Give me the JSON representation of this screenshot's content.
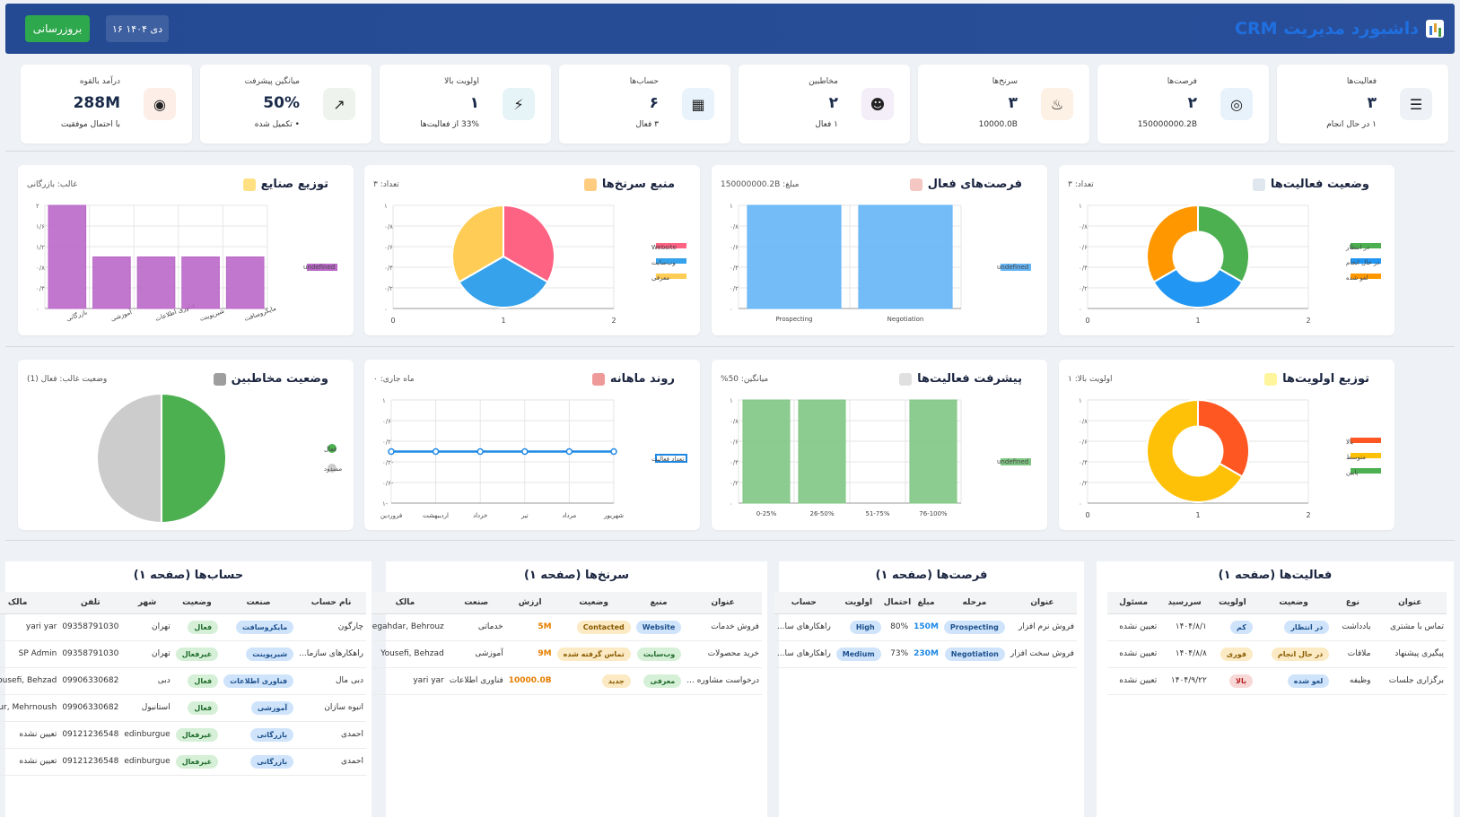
{
  "header": {
    "title": "داشبورد مدیریت CRM",
    "refresh_label": "بروزرسانی",
    "date": "۱۶ دی ۱۴۰۴"
  },
  "kpis": [
    {
      "label": "فعالیت‌ها",
      "value": "۳",
      "sub": "۱ در حال انجام",
      "icon": "clipboard-icon",
      "bg": "#eef2f6"
    },
    {
      "label": "فرصت‌ها",
      "value": "۲",
      "sub": "150000000.2B",
      "icon": "target-icon",
      "bg": "#e8f2fb"
    },
    {
      "label": "سرنخ‌ها",
      "value": "۳",
      "sub": "10000.0B",
      "icon": "fire-icon",
      "bg": "#fdf0e4"
    },
    {
      "label": "مخاطبین",
      "value": "۲",
      "sub": "۱ فعال",
      "icon": "people-icon",
      "bg": "#f3eef8"
    },
    {
      "label": "حساب‌ها",
      "value": "۶",
      "sub": "۳ فعال",
      "icon": "building-icon",
      "bg": "#e9f3fb"
    },
    {
      "label": "اولویت بالا",
      "value": "۱",
      "sub": "33% از فعالیت‌ها",
      "icon": "lightning-icon",
      "bg": "#e6f4f7"
    },
    {
      "label": "میانگین پیشرفت",
      "value": "50%",
      "sub": "• تکمیل شده",
      "icon": "trend-chart-icon",
      "bg": "#eef3ee"
    },
    {
      "label": "درآمد بالقوه",
      "value": "288M",
      "sub": "با احتمال موفقیت",
      "icon": "money-bag-icon",
      "bg": "#fdeee8"
    }
  ],
  "cards": {
    "activity_status": {
      "title": "وضعیت فعالیت‌ها",
      "meta": "تعداد: ۳"
    },
    "opportunities": {
      "title": "فرصت‌های فعال",
      "meta": "مبلغ: 150000000.2B"
    },
    "leads_source": {
      "title": "منبع سرنخ‌ها",
      "meta": "تعداد: ۳"
    },
    "industries": {
      "title": "توزیع صنایع",
      "meta": "غالب: بازرگانی"
    },
    "priority": {
      "title": "توزیع اولویت‌ها",
      "meta": "اولویت بالا: ۱"
    },
    "progress": {
      "title": "پیشرفت فعالیت‌ها",
      "meta": "میانگین: 50%"
    },
    "monthly": {
      "title": "روند ماهانه",
      "meta": "ماه جاری: ۰"
    },
    "contacts": {
      "title": "وضعیت مخاطبین",
      "meta": "وضعیت غالب: فعال (1)"
    }
  },
  "chart_data": [
    {
      "type": "pie",
      "id": "activity_status",
      "donut": true,
      "categories": [
        "در انتظار",
        "در حال انجام",
        "لغو شده"
      ],
      "values": [
        1,
        1,
        1
      ],
      "colors": [
        "#4caf50",
        "#2196f3",
        "#ff9800"
      ],
      "legend": "right",
      "x_ticks": [
        "0",
        "1",
        "2"
      ],
      "y_ticks": [
        "۰",
        "۰/۲",
        "۰/۴",
        "۰/۶",
        "۰/۸",
        "۱"
      ]
    },
    {
      "type": "bar",
      "id": "opportunities",
      "categories": [
        "Prospecting",
        "Negotiation"
      ],
      "values": [
        1,
        1
      ],
      "series_name": "undefined",
      "color": "#64b5f6",
      "y_ticks": [
        "۰",
        "۰/۲",
        "۰/۴",
        "۰/۶",
        "۰/۸",
        "۱"
      ],
      "ylim": [
        0,
        1
      ]
    },
    {
      "type": "pie",
      "id": "leads_source",
      "donut": false,
      "categories": [
        "Website",
        "وب‌سایت",
        "معرفی"
      ],
      "values": [
        1,
        1,
        1
      ],
      "colors": [
        "#ff6384",
        "#36a2eb",
        "#ffcd56"
      ],
      "legend": "right",
      "x_ticks": [
        "0",
        "1",
        "2"
      ],
      "y_ticks": [
        "۰",
        "۰/۲",
        "۰/۴",
        "۰/۶",
        "۰/۸",
        "۱"
      ]
    },
    {
      "type": "bar",
      "id": "industries",
      "categories": [
        "بازرگانی",
        "آموزشی",
        "فناوری اطلاعات",
        "شیرپوینت",
        "مایکروسافت"
      ],
      "values": [
        2,
        1,
        1,
        1,
        1
      ],
      "series_name": "undefined",
      "color": "#ba68c8",
      "y_ticks": [
        "۰",
        "۰/۴",
        "۰/۸",
        "۱/۲",
        "۱/۶",
        "۲"
      ],
      "ylim": [
        0,
        2
      ]
    },
    {
      "type": "pie",
      "id": "priority",
      "donut": true,
      "categories": [
        "بالا",
        "متوسط",
        "پایین"
      ],
      "values": [
        1,
        2,
        0
      ],
      "colors": [
        "#ff5722",
        "#ffc107",
        "#4caf50"
      ],
      "legend": "right",
      "x_ticks": [
        "0",
        "1",
        "2"
      ],
      "y_ticks": [
        "۰",
        "۰/۲",
        "۰/۴",
        "۰/۶",
        "۰/۸",
        "۱"
      ]
    },
    {
      "type": "bar",
      "id": "progress",
      "categories": [
        "0-25%",
        "26-50%",
        "51-75%",
        "76-100%"
      ],
      "values": [
        1,
        1,
        0,
        1
      ],
      "series_name": "undefined",
      "color": "#81c784",
      "y_ticks": [
        "۰",
        "۰/۲",
        "۰/۴",
        "۰/۶",
        "۰/۸",
        "۱"
      ],
      "ylim": [
        0,
        1
      ]
    },
    {
      "type": "line",
      "id": "monthly",
      "categories": [
        "فروردین",
        "اردیبهشت",
        "خرداد",
        "تیر",
        "مرداد",
        "شهریور"
      ],
      "values": [
        0,
        0,
        0,
        0,
        0,
        0
      ],
      "series_name": "تعداد فعالیت",
      "color": "#1e88e5",
      "y_ticks": [
        "-۱",
        "-۰/۶",
        "-۰/۲",
        "۰/۲",
        "۰/۶",
        "۱"
      ],
      "ylim": [
        -1,
        1
      ]
    },
    {
      "type": "pie",
      "id": "contacts",
      "donut": false,
      "categories": [
        "فعال",
        "مسدود"
      ],
      "values": [
        1,
        1
      ],
      "colors": [
        "#4caf50",
        "#cccccc"
      ],
      "legend": "right"
    }
  ],
  "tables": {
    "activities": {
      "title": "فعالیت‌ها (صفحه ۱)",
      "headers": [
        "عنوان",
        "نوع",
        "وضعیت",
        "اولویت",
        "سررسید",
        "مسئول"
      ],
      "rows": [
        [
          "تماس با مشتری",
          "یادداشت",
          "در انتظار",
          "کم",
          "۱۴۰۴/۸/۱",
          "تعیین نشده"
        ],
        [
          "پیگیری پیشنهاد",
          "ملاقات",
          "در حال انجام",
          "فوری",
          "۱۴۰۴/۸/۸",
          "تعیین نشده"
        ],
        [
          "برگزاری جلسات",
          "وظیفه",
          "لغو شده",
          "بالا",
          "۱۴۰۴/۹/۲۲",
          "تعیین نشده"
        ]
      ]
    },
    "opportunities": {
      "title": "فرصت‌ها (صفحه ۱)",
      "headers": [
        "عنوان",
        "مرحله",
        "مبلغ",
        "احتمال",
        "اولویت",
        "حساب"
      ],
      "rows": [
        [
          "فروش نرم افزار",
          "Prospecting",
          "150M",
          "80%",
          "High",
          "راهکارهای سا..."
        ],
        [
          "فروش سخت افزار",
          "Negotiation",
          "230M",
          "73%",
          "Medium",
          "راهکارهای سا..."
        ]
      ]
    },
    "leads": {
      "title": "سرنخ‌ها (صفحه ۱)",
      "headers": [
        "عنوان",
        "منبع",
        "وضعیت",
        "ارزش",
        "صنعت",
        "مالک"
      ],
      "rows": [
        [
          "فروش خدمات",
          "Website",
          "Contacted",
          "5M",
          "خدماتی",
          "Negahdar, Behrouz"
        ],
        [
          "خرید محصولات",
          "وب‌سایت",
          "تماس گرفته شده",
          "9M",
          "آموزشی",
          "Yousefi, Behzad"
        ],
        [
          "درخواست مشاوره ...",
          "معرفی",
          "جدید",
          "10000.0B",
          "فناوری اطلاعات",
          "yari yar"
        ]
      ]
    },
    "accounts": {
      "title": "حساب‌ها (صفحه ۱)",
      "headers": [
        "نام حساب",
        "صنعت",
        "وضعیت",
        "شهر",
        "تلفن",
        "مالک"
      ],
      "rows": [
        [
          "چارگون",
          "مایکروسافت",
          "فعال",
          "تهران",
          "09358791030",
          "yari yar"
        ],
        [
          "راهکارهای سازما...",
          "شیرپوینت",
          "غیرفعال",
          "تهران",
          "09358791030",
          "SP Admin"
        ],
        [
          "دبی مال",
          "فناوری اطلاعات",
          "فعال",
          "دبی",
          "09906330682",
          "Yousefi, Behzad"
        ],
        [
          "انبوه سازان",
          "آموزشی",
          "فعال",
          "استانبول",
          "09906330682",
          "Alipour, Mehrnoush"
        ],
        [
          "احمدی",
          "بازرگانی",
          "غیرفعال",
          "edinburgue",
          "09121236548",
          "تعیین نشده"
        ],
        [
          "احمدی",
          "بازرگانی",
          "غیرفعال",
          "edinburgue",
          "09121236548",
          "تعیین نشده"
        ]
      ]
    }
  }
}
